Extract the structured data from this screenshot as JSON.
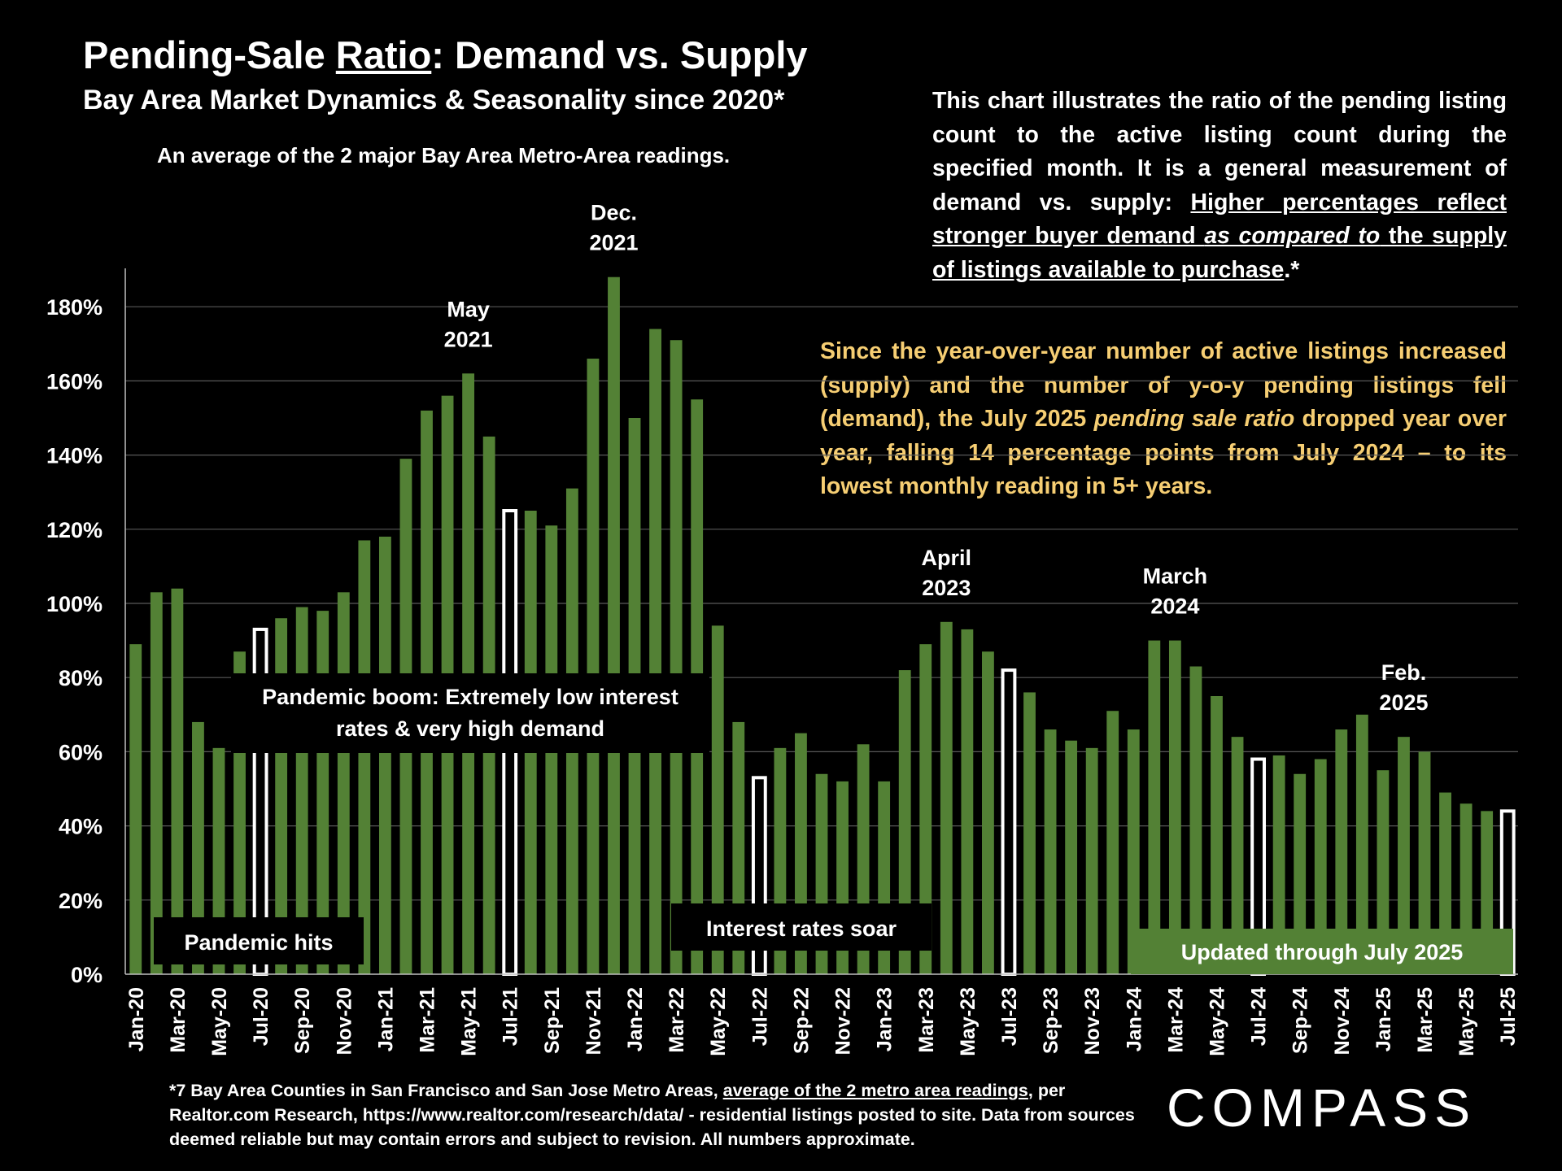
{
  "header": {
    "title_pre": "Pending-Sale ",
    "title_underlined": "Ratio",
    "title_post": ":  Demand vs. Supply",
    "subtitle": "Bay Area Market Dynamics & Seasonality since 2020*",
    "note": "An average of the 2 major Bay Area Metro-Area readings."
  },
  "explanation": {
    "lead": "This chart illustrates the ratio of the pending listing count to the active listing count during the specified month. It is a general measurement of demand vs. supply:  ",
    "emph_1": "Higher percentages reflect stronger buyer demand ",
    "emph_italic": "as compared to",
    "emph_2": " the supply of listings available to purchase",
    "tail": ".*"
  },
  "highlight": {
    "part1": "Since the year-over-year number of active listings increased (supply) and the number of y-o-y pending listings fell (demand), the July 2025 ",
    "italic": "pending sale ratio",
    "part2": " dropped year over year, falling 14 percentage points from July 2024 – to its lowest monthly reading in 5+ years."
  },
  "footnote": {
    "part1": "*7 Bay Area Counties in San Francisco and San Jose Metro Areas, ",
    "underlined": "average of the 2 metro area readings",
    "part2": ", per Realtor.com Research, https://www.realtor.com/research/data/ - residential listings posted to site.  Data from sources deemed reliable but may contain errors and subject to revision. All numbers approximate."
  },
  "logo": {
    "text": "COMPASS"
  },
  "colors": {
    "background": "#000000",
    "bar": "#538135",
    "highlight_bar": "#FFFFFF",
    "highlight_text": "#F6CE73",
    "gridline": "#595959",
    "updated_box": "#538135",
    "annotation_box": "#000000"
  },
  "chart_data": {
    "type": "bar",
    "ylim": [
      0,
      190
    ],
    "yticks": [
      0,
      20,
      40,
      60,
      80,
      100,
      120,
      140,
      160,
      180
    ],
    "ytick_labels": [
      "0%",
      "20%",
      "40%",
      "60%",
      "80%",
      "100%",
      "120%",
      "140%",
      "160%",
      "180%"
    ],
    "grid": true,
    "months": [
      "Jan-20",
      "Feb-20",
      "Mar-20",
      "Apr-20",
      "May-20",
      "Jun-20",
      "Jul-20",
      "Aug-20",
      "Sep-20",
      "Oct-20",
      "Nov-20",
      "Dec-20",
      "Jan-21",
      "Feb-21",
      "Mar-21",
      "Apr-21",
      "May-21",
      "Jun-21",
      "Jul-21",
      "Aug-21",
      "Sep-21",
      "Oct-21",
      "Nov-21",
      "Dec-21",
      "Jan-22",
      "Feb-22",
      "Mar-22",
      "Apr-22",
      "May-22",
      "Jun-22",
      "Jul-22",
      "Aug-22",
      "Sep-22",
      "Oct-22",
      "Nov-22",
      "Dec-22",
      "Jan-23",
      "Feb-23",
      "Mar-23",
      "Apr-23",
      "May-23",
      "Jun-23",
      "Jul-23",
      "Aug-23",
      "Sep-23",
      "Oct-23",
      "Nov-23",
      "Dec-23",
      "Jan-24",
      "Feb-24",
      "Mar-24",
      "Apr-24",
      "May-24",
      "Jun-24",
      "Jul-24",
      "Aug-24",
      "Sep-24",
      "Oct-24",
      "Nov-24",
      "Dec-24",
      "Jan-25",
      "Feb-25",
      "Mar-25",
      "Apr-25",
      "May-25",
      "Jun-25",
      "Jul-25"
    ],
    "x_tick_labels": [
      "Jan-20",
      "Mar-20",
      "May-20",
      "Jul-20",
      "Sep-20",
      "Nov-20",
      "Jan-21",
      "Mar-21",
      "May-21",
      "Jul-21",
      "Sep-21",
      "Nov-21",
      "Jan-22",
      "Mar-22",
      "May-22",
      "Jul-22",
      "Sep-22",
      "Nov-22",
      "Jan-23",
      "Mar-23",
      "May-23",
      "Jul-23",
      "Sep-23",
      "Nov-23",
      "Jan-24",
      "Mar-24",
      "May-24",
      "Jul-24",
      "Sep-24",
      "Nov-24",
      "Jan-25",
      "Mar-25",
      "May-25",
      "Jul-25"
    ],
    "values": [
      89,
      103,
      104,
      68,
      61,
      87,
      93,
      96,
      99,
      98,
      103,
      117,
      118,
      139,
      152,
      156,
      162,
      145,
      125,
      125,
      121,
      131,
      166,
      188,
      150,
      174,
      171,
      155,
      94,
      68,
      53,
      61,
      65,
      54,
      52,
      62,
      52,
      82,
      89,
      95,
      93,
      87,
      82,
      76,
      66,
      63,
      61,
      71,
      66,
      90,
      90,
      83,
      75,
      64,
      58,
      59,
      54,
      58,
      66,
      70,
      55,
      64,
      60,
      49,
      46,
      44,
      44
    ],
    "highlighted_months": [
      "Jul-20",
      "Jul-21",
      "Jul-22",
      "Jul-23",
      "Jul-24",
      "Jul-25"
    ],
    "peak_labels": [
      {
        "month": "May-21",
        "line1": "May",
        "line2": "2021"
      },
      {
        "month": "Dec-21",
        "line1": "Dec.",
        "line2": "2021"
      },
      {
        "month": "Apr-23",
        "line1": "April",
        "line2": "2023"
      },
      {
        "month": "Mar-24",
        "line1": "March",
        "line2": "2024"
      },
      {
        "month": "Feb-25",
        "line1": "Feb.",
        "line2": "2025"
      }
    ],
    "annotations": [
      {
        "text": "Pandemic hits",
        "style": "dark"
      },
      {
        "text": "Pandemic boom: Extremely low interest",
        "text2": "rates & very high demand",
        "style": "dark"
      },
      {
        "text": "Interest rates soar",
        "style": "dark"
      },
      {
        "text": "Updated through July 2025",
        "style": "green"
      }
    ]
  }
}
